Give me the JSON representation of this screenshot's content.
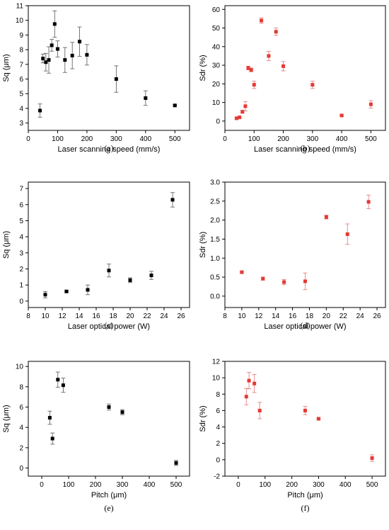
{
  "chart_data": [
    {
      "type": "scatter",
      "caption": "(a)",
      "xlabel": "Laser scanning speed (mm/s)",
      "ylabel": "Sq (μm)",
      "xlim": [
        0,
        550
      ],
      "ylim": [
        2.5,
        11
      ],
      "xticks": [
        0,
        100,
        200,
        300,
        400,
        500
      ],
      "yticks": [
        3,
        4,
        5,
        6,
        7,
        8,
        9,
        10,
        11
      ],
      "color": "#000000",
      "points": [
        {
          "x": 40,
          "y": 3.85,
          "err": 0.45
        },
        {
          "x": 50,
          "y": 7.4,
          "err": 0.3
        },
        {
          "x": 60,
          "y": 7.15,
          "err": 0.6
        },
        {
          "x": 70,
          "y": 7.3,
          "err": 0.9
        },
        {
          "x": 80,
          "y": 8.3,
          "err": 0.4
        },
        {
          "x": 90,
          "y": 9.75,
          "err": 0.9
        },
        {
          "x": 100,
          "y": 8.05,
          "err": 0.55
        },
        {
          "x": 125,
          "y": 7.3,
          "err": 0.85
        },
        {
          "x": 150,
          "y": 7.6,
          "err": 0.9
        },
        {
          "x": 175,
          "y": 8.55,
          "err": 1.0
        },
        {
          "x": 200,
          "y": 7.65,
          "err": 0.7
        },
        {
          "x": 300,
          "y": 6.0,
          "err": 0.9
        },
        {
          "x": 400,
          "y": 4.7,
          "err": 0.5
        },
        {
          "x": 500,
          "y": 4.2,
          "err": 0.05
        }
      ]
    },
    {
      "type": "scatter",
      "caption": "(b)",
      "xlabel": "Laser scanning speed (mm/s)",
      "ylabel": "Sdr (%)",
      "xlim": [
        0,
        550
      ],
      "ylim": [
        -5,
        62
      ],
      "xticks": [
        0,
        100,
        200,
        300,
        400,
        500
      ],
      "yticks": [
        0,
        10,
        20,
        30,
        40,
        50,
        60
      ],
      "color": "#e53935",
      "points": [
        {
          "x": 40,
          "y": 1.5,
          "err": 0.5
        },
        {
          "x": 50,
          "y": 2.0,
          "err": 0.5
        },
        {
          "x": 60,
          "y": 5.0,
          "err": 0.8
        },
        {
          "x": 70,
          "y": 8.0,
          "err": 2.5
        },
        {
          "x": 80,
          "y": 28.5,
          "err": 1.0
        },
        {
          "x": 90,
          "y": 27.5,
          "err": 1.0
        },
        {
          "x": 100,
          "y": 19.5,
          "err": 2.0
        },
        {
          "x": 125,
          "y": 54.0,
          "err": 1.5
        },
        {
          "x": 150,
          "y": 35.0,
          "err": 2.5
        },
        {
          "x": 175,
          "y": 48.0,
          "err": 2.0
        },
        {
          "x": 200,
          "y": 29.5,
          "err": 2.5
        },
        {
          "x": 300,
          "y": 19.5,
          "err": 2.0
        },
        {
          "x": 400,
          "y": 3.0,
          "err": 0.3
        },
        {
          "x": 500,
          "y": 9.0,
          "err": 2.0
        }
      ]
    },
    {
      "type": "scatter",
      "caption": "(c)",
      "xlabel": "Laser optical power (W)",
      "ylabel": "Sq (μm)",
      "xlim": [
        8,
        27
      ],
      "ylim": [
        -0.4,
        7.4
      ],
      "xticks": [
        8,
        10,
        12,
        14,
        16,
        18,
        20,
        22,
        24,
        26
      ],
      "yticks": [
        0,
        1,
        2,
        3,
        4,
        5,
        6,
        7
      ],
      "color": "#000000",
      "points": [
        {
          "x": 10,
          "y": 0.4,
          "err": 0.2
        },
        {
          "x": 12.5,
          "y": 0.6,
          "err": 0.05
        },
        {
          "x": 15,
          "y": 0.7,
          "err": 0.3
        },
        {
          "x": 17.5,
          "y": 1.9,
          "err": 0.4
        },
        {
          "x": 20,
          "y": 1.3,
          "err": 0.15
        },
        {
          "x": 22.5,
          "y": 1.6,
          "err": 0.25
        },
        {
          "x": 25,
          "y": 6.3,
          "err": 0.45
        }
      ]
    },
    {
      "type": "scatter",
      "caption": "(d)",
      "xlabel": "Laser optical power (W)",
      "ylabel": "Sdr (%)",
      "xlim": [
        8,
        27
      ],
      "ylim": [
        -0.3,
        3.0
      ],
      "xticks": [
        8,
        10,
        12,
        14,
        16,
        18,
        20,
        22,
        24,
        26
      ],
      "yticks": [
        0.0,
        0.5,
        1.0,
        1.5,
        2.0,
        2.5,
        3.0
      ],
      "yticklabels": [
        "0.0",
        "0.5",
        "1.0",
        "1.5",
        "2.0",
        "2.5",
        "3.0"
      ],
      "color": "#e53935",
      "points": [
        {
          "x": 10,
          "y": 0.63,
          "err": 0.03
        },
        {
          "x": 12.5,
          "y": 0.46,
          "err": 0.04
        },
        {
          "x": 15,
          "y": 0.37,
          "err": 0.07
        },
        {
          "x": 17.5,
          "y": 0.39,
          "err": 0.22
        },
        {
          "x": 20,
          "y": 2.08,
          "err": 0.05
        },
        {
          "x": 22.5,
          "y": 1.63,
          "err": 0.27
        },
        {
          "x": 25,
          "y": 2.48,
          "err": 0.18
        }
      ]
    },
    {
      "type": "scatter",
      "caption": "(e)",
      "xlabel": "Pitch (μm)",
      "ylabel": "Sq (μm)",
      "xlim": [
        -50,
        550
      ],
      "ylim": [
        -0.8,
        10.5
      ],
      "xticks": [
        0,
        100,
        200,
        300,
        400,
        500
      ],
      "yticks": [
        0,
        2,
        4,
        6,
        8,
        10
      ],
      "color": "#000000",
      "points": [
        {
          "x": 30,
          "y": 4.95,
          "err": 0.65
        },
        {
          "x": 40,
          "y": 2.9,
          "err": 0.55
        },
        {
          "x": 60,
          "y": 8.7,
          "err": 0.75
        },
        {
          "x": 80,
          "y": 8.15,
          "err": 0.7
        },
        {
          "x": 250,
          "y": 6.0,
          "err": 0.3
        },
        {
          "x": 300,
          "y": 5.5,
          "err": 0.25
        },
        {
          "x": 500,
          "y": 0.5,
          "err": 0.25
        }
      ]
    },
    {
      "type": "scatter",
      "caption": "(f)",
      "xlabel": "Pitch (μm)",
      "ylabel": "Sdr (%)",
      "xlim": [
        -50,
        550
      ],
      "ylim": [
        -2,
        12
      ],
      "xticks": [
        0,
        100,
        200,
        300,
        400,
        500
      ],
      "yticks": [
        -2,
        0,
        2,
        4,
        6,
        8,
        10,
        12
      ],
      "color": "#e53935",
      "points": [
        {
          "x": 30,
          "y": 7.7,
          "err": 1.0
        },
        {
          "x": 40,
          "y": 9.65,
          "err": 1.0
        },
        {
          "x": 60,
          "y": 9.3,
          "err": 1.1
        },
        {
          "x": 80,
          "y": 6.0,
          "err": 1.0
        },
        {
          "x": 250,
          "y": 6.0,
          "err": 0.5
        },
        {
          "x": 300,
          "y": 5.0,
          "err": 0.1
        },
        {
          "x": 500,
          "y": 0.2,
          "err": 0.4
        }
      ]
    }
  ]
}
